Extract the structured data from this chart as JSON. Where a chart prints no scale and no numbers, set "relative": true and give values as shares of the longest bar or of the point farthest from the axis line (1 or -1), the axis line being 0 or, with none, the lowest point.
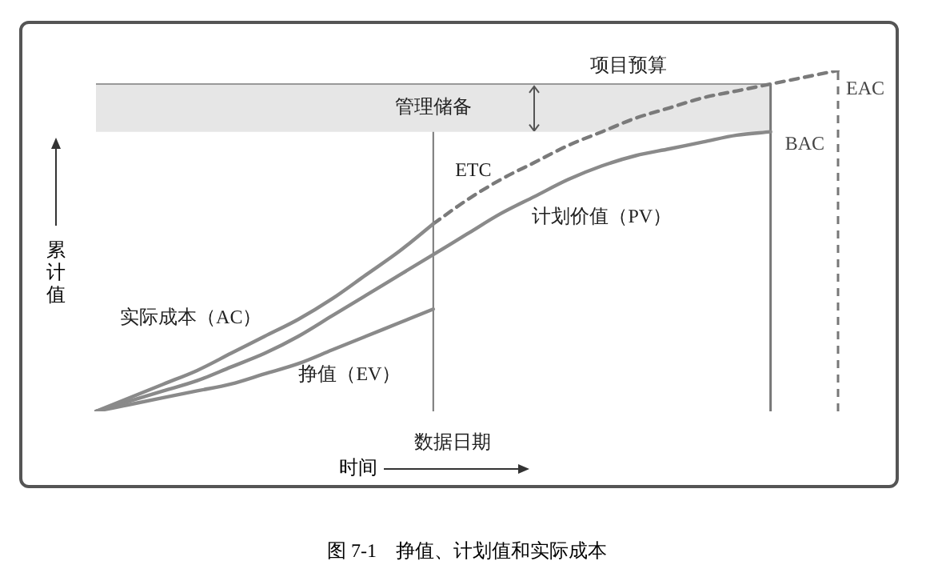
{
  "chart_data": {
    "type": "line",
    "relative": true,
    "ylabel": "累计值",
    "xlabel": "时间",
    "marker": "none",
    "categories": [
      null,
      null,
      null,
      null,
      null,
      null,
      null,
      null,
      null,
      null,
      null,
      null,
      null,
      null,
      null,
      null,
      null,
      null,
      null,
      null,
      null,
      null,
      null
    ],
    "series": [
      {
        "name": "实际成本（AC）",
        "color": "#8a8a8a",
        "values": [
          0,
          0.04,
          0.08,
          0.12,
          0.17,
          0.22,
          0.27,
          0.33,
          0.4,
          0.47,
          0.55,
          null,
          null,
          null,
          null,
          null,
          null,
          null,
          null,
          null,
          null,
          null,
          null
        ]
      },
      {
        "name": "计划价值（PV）",
        "color": "#8a8a8a",
        "values": [
          0,
          0.03,
          0.06,
          0.09,
          0.13,
          0.17,
          0.22,
          0.28,
          0.34,
          0.4,
          0.46,
          0.52,
          0.58,
          0.63,
          0.68,
          0.72,
          0.75,
          0.77,
          0.79,
          0.81,
          0.82,
          null,
          null
        ]
      },
      {
        "name": "ETC",
        "color": "#7a7a7a",
        "line_style": "dashed",
        "values": [
          null,
          null,
          null,
          null,
          null,
          null,
          null,
          null,
          null,
          null,
          0.55,
          0.62,
          0.68,
          0.73,
          0.78,
          0.82,
          0.86,
          0.89,
          0.92,
          0.94,
          0.96,
          0.98,
          1
        ]
      },
      {
        "name": "挣值（EV）",
        "color": "#8a8a8a",
        "values": [
          0,
          0.02,
          0.04,
          0.06,
          0.08,
          0.11,
          0.14,
          0.18,
          0.22,
          0.26,
          0.3,
          null,
          null,
          null,
          null,
          null,
          null,
          null,
          null,
          null,
          null,
          null,
          null
        ]
      }
    ],
    "bands": [
      {
        "axis": "y",
        "from": 0.82,
        "to": 0.96,
        "label": "管理储备",
        "color": "#e6e6e6"
      }
    ],
    "ref_lines": [
      {
        "axis": "x",
        "label": "数据日期",
        "line_style": "solid"
      },
      {
        "axis": "x",
        "label": null,
        "line_style": "solid"
      },
      {
        "axis": "x",
        "label": null,
        "line_style": "dashed"
      },
      {
        "axis": "y",
        "value": 0.96,
        "label": "项目预算",
        "line_style": "solid"
      }
    ],
    "annotations": [
      "BAC",
      "EAC",
      "图 7-1　挣值、计划值和实际成本"
    ]
  }
}
